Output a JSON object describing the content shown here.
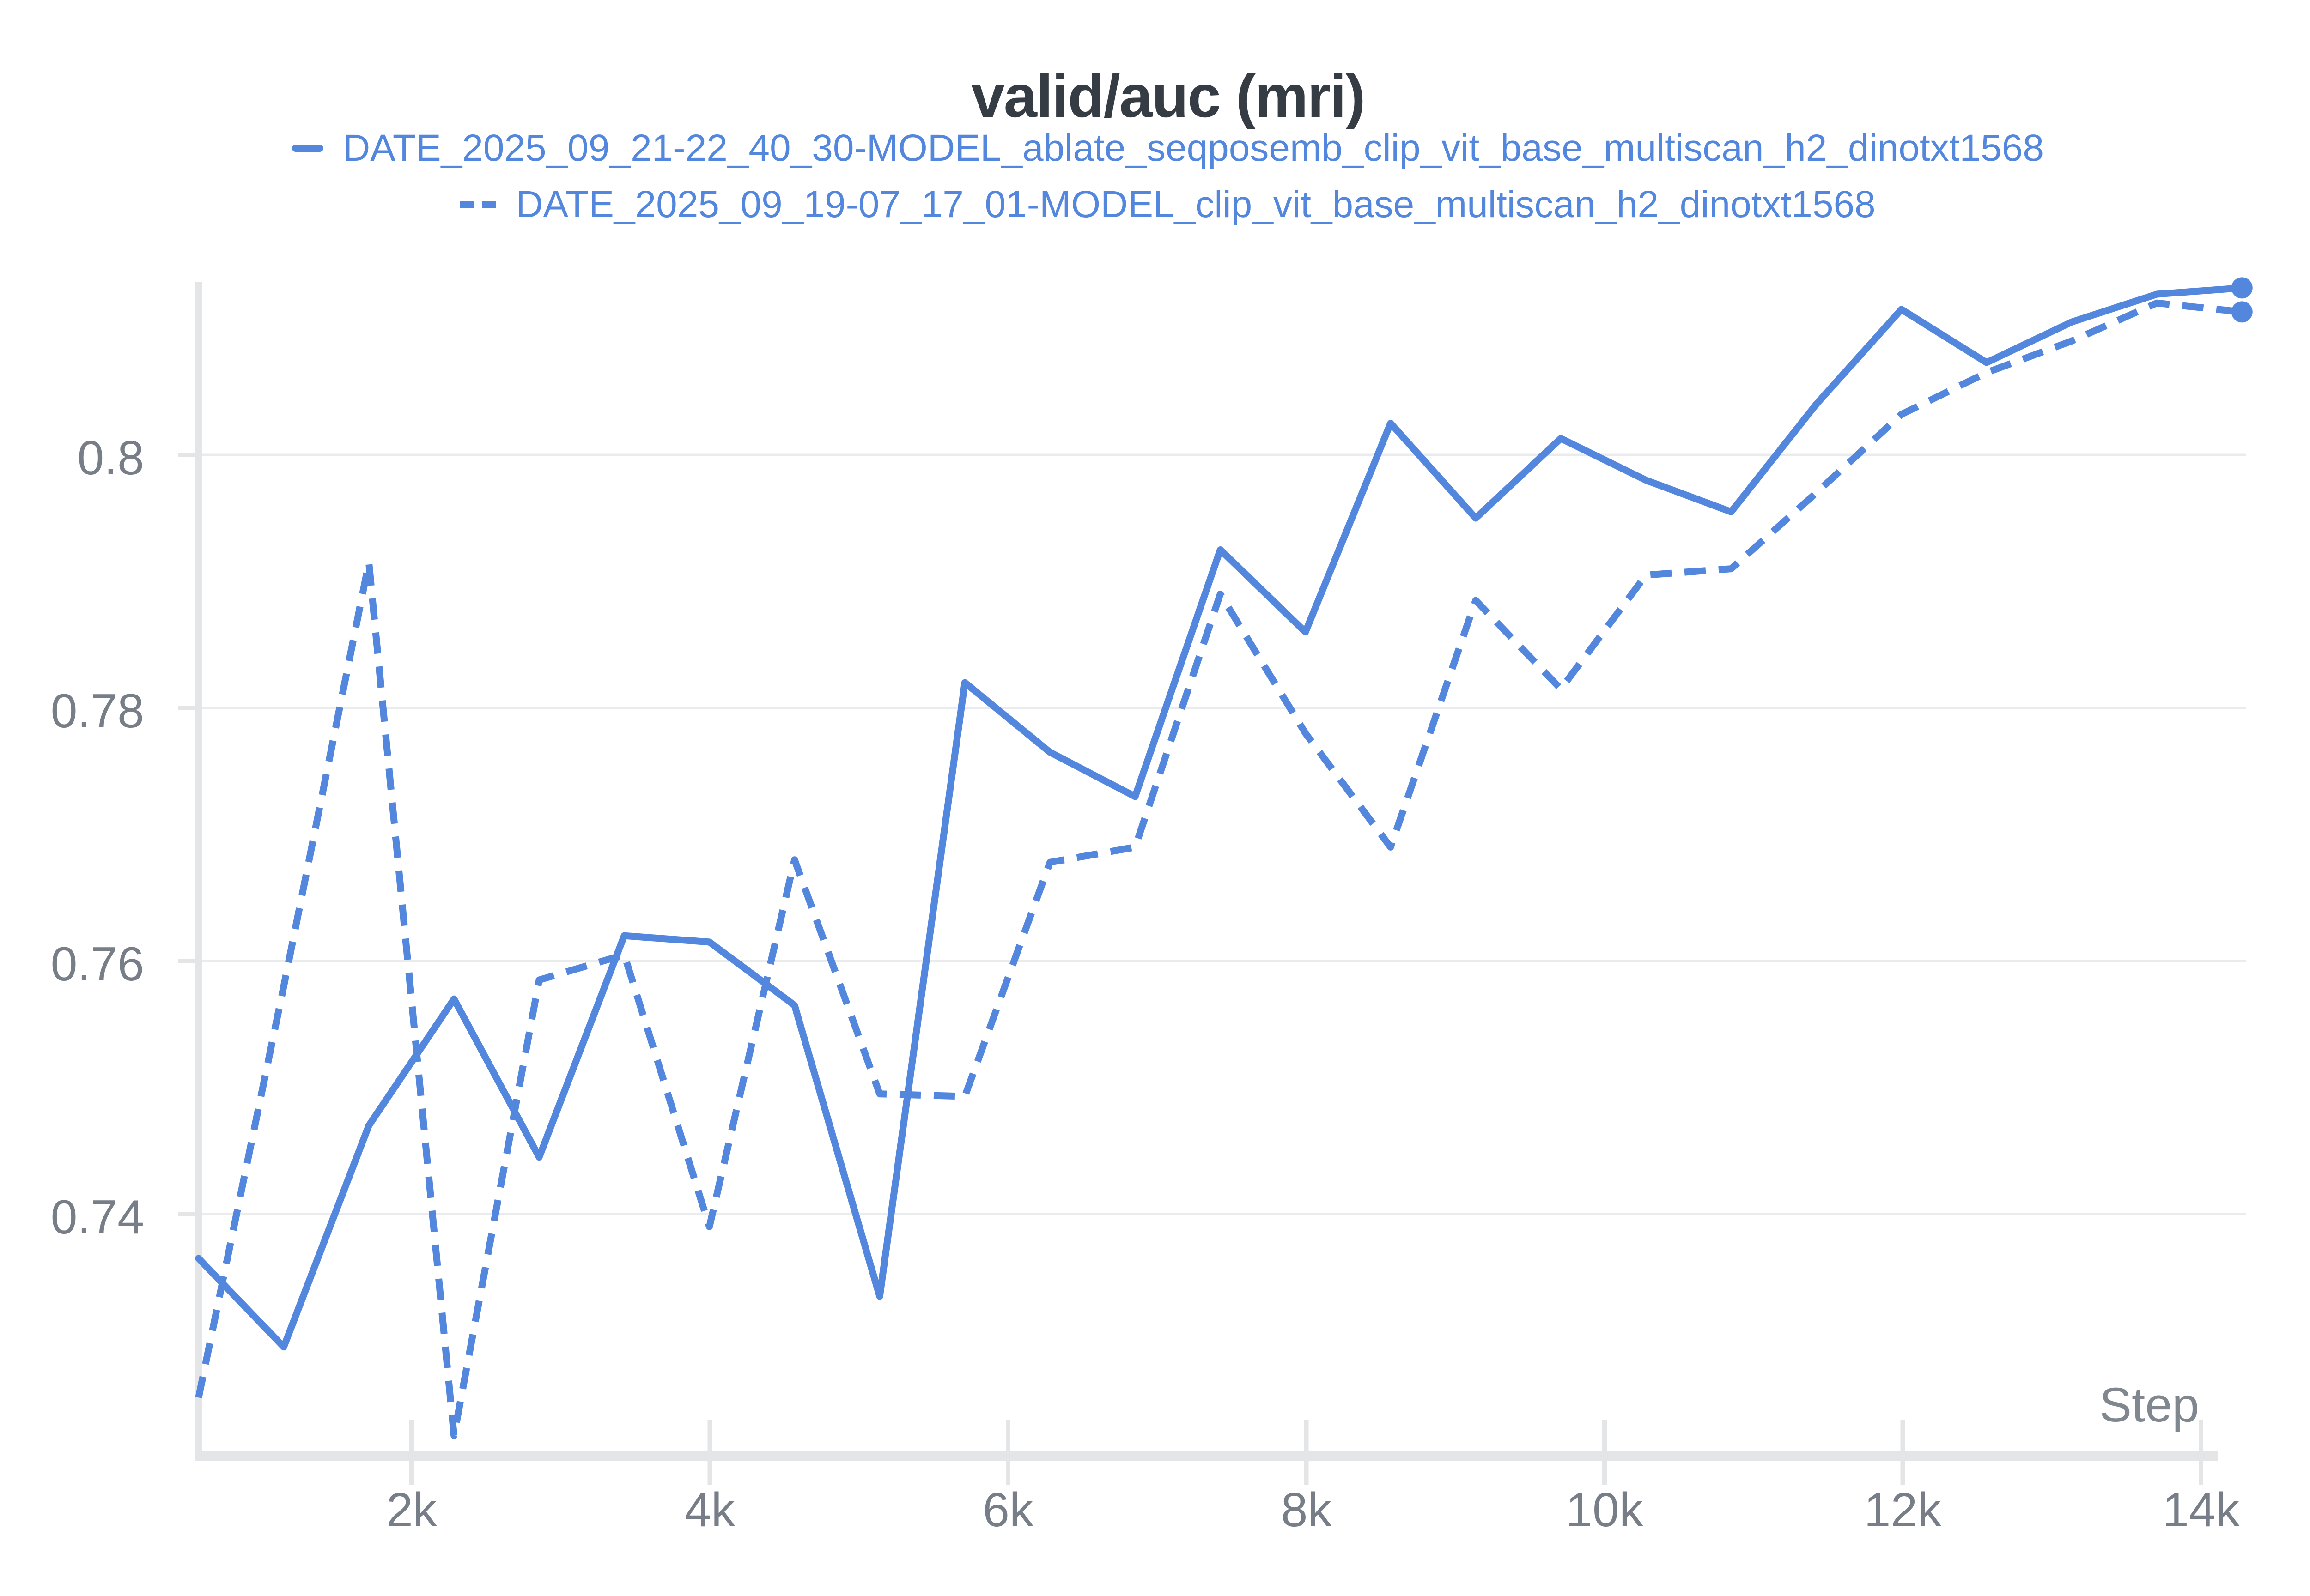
{
  "title": "valid/auc (mri)",
  "legend": {
    "items": [
      {
        "label": "DATE_2025_09_21-22_40_30-MODEL_ablate_seqposemb_clip_vit_base_multiscan_h2_dinotxt1568",
        "line_style": "solid"
      },
      {
        "label": "DATE_2025_09_19-07_17_01-MODEL_clip_vit_base_multiscan_h2_dinotxt1568",
        "line_style": "dashed"
      }
    ]
  },
  "axes": {
    "x_label": "Step",
    "x_tick_labels": [
      "2k",
      "4k",
      "6k",
      "8k",
      "10k",
      "12k",
      "14k"
    ],
    "x_tick_steps": [
      2000,
      4000,
      6000,
      8000,
      10000,
      12000,
      14000
    ],
    "y_tick_labels": [
      "0.8",
      "0.78",
      "0.76",
      "0.74"
    ],
    "y_tick_values": [
      0.8,
      0.78,
      0.76,
      0.74
    ]
  },
  "chart_data": {
    "type": "line",
    "title": "valid/auc (mri)",
    "xlabel": "Step",
    "ylabel": "",
    "x": [
      571,
      1142,
      1713,
      2284,
      2855,
      3426,
      3997,
      4568,
      5139,
      5710,
      6281,
      6852,
      7423,
      7994,
      8565,
      9136,
      9707,
      10278,
      10849,
      11420,
      11991,
      12562,
      13133,
      13704,
      14275
    ],
    "series": [
      {
        "name": "DATE_2025_09_21-22_40_30-MODEL_ablate_seqposemb_clip_vit_base_multiscan_h2_dinotxt1568",
        "style": "solid",
        "color": "#5387dd",
        "values": [
          0.7365,
          0.7295,
          0.747,
          0.757,
          0.7445,
          0.762,
          0.7615,
          0.7565,
          0.7335,
          0.782,
          0.7765,
          0.773,
          0.7925,
          0.786,
          0.8025,
          0.795,
          0.8013,
          0.798,
          0.7955,
          0.804,
          0.8115,
          0.8073,
          0.8105,
          0.8127,
          0.8132
        ]
      },
      {
        "name": "DATE_2025_09_19-07_17_01-MODEL_clip_vit_base_multiscan_h2_dinotxt1568",
        "style": "dashed",
        "color": "#5387dd",
        "values": [
          0.7255,
          0.758,
          0.7915,
          0.7225,
          0.7585,
          0.7605,
          0.739,
          0.768,
          0.7495,
          0.7493,
          0.7678,
          0.769,
          0.789,
          0.778,
          0.769,
          0.7885,
          0.7815,
          0.7905,
          0.791,
          0.797,
          0.8032,
          0.8065,
          0.809,
          0.812,
          0.8113
        ]
      }
    ],
    "xlim": [
      571,
      14330
    ],
    "ylim": [
      0.721,
      0.8135
    ],
    "grid": "horizontal-only",
    "legend_position": "top-center",
    "end_point_markers": true
  },
  "colors": {
    "accent_blue": "#5387dd",
    "title_text": "#363c44",
    "tick_text": "#777e87",
    "axis_label_text": "#80878f",
    "gridline": "#eaebed",
    "axis_line": "#e4e5e7",
    "background": "#ffffff"
  }
}
